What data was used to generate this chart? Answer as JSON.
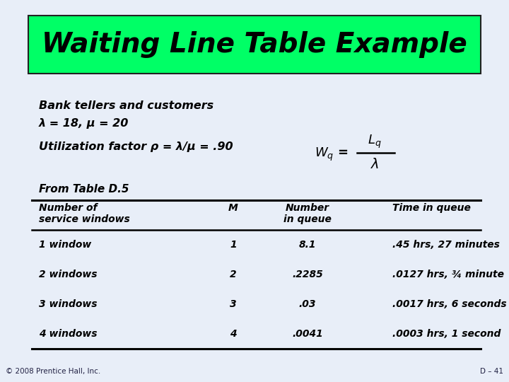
{
  "title": "Waiting Line Table Example",
  "title_bg": "#00FF66",
  "title_color": "#000000",
  "subtitle_line1": "Bank tellers and customers",
  "subtitle_line2": "λ = 18, μ = 20",
  "util_text": "Utilization factor ρ = λ/μ = .90",
  "from_table": "From Table D.5",
  "col_headers_line1": [
    "Number of",
    "M",
    "Number",
    "Time in queue"
  ],
  "col_headers_line2": [
    "service windows",
    "",
    "in queue",
    ""
  ],
  "rows": [
    [
      "1 window",
      "1",
      "8.1",
      ".45 hrs, 27 minutes"
    ],
    [
      "2 windows",
      "2",
      ".2285",
      ".0127 hrs, ¾ minute"
    ],
    [
      "3 windows",
      "3",
      ".03",
      ".0017 hrs, 6 seconds"
    ],
    [
      "4 windows",
      "4",
      ".0041",
      ".0003 hrs, 1 second"
    ]
  ],
  "bg_color": "#e8eef8",
  "footer_left": "© 2008 Prentice Hall, Inc.",
  "footer_right": "D – 41"
}
